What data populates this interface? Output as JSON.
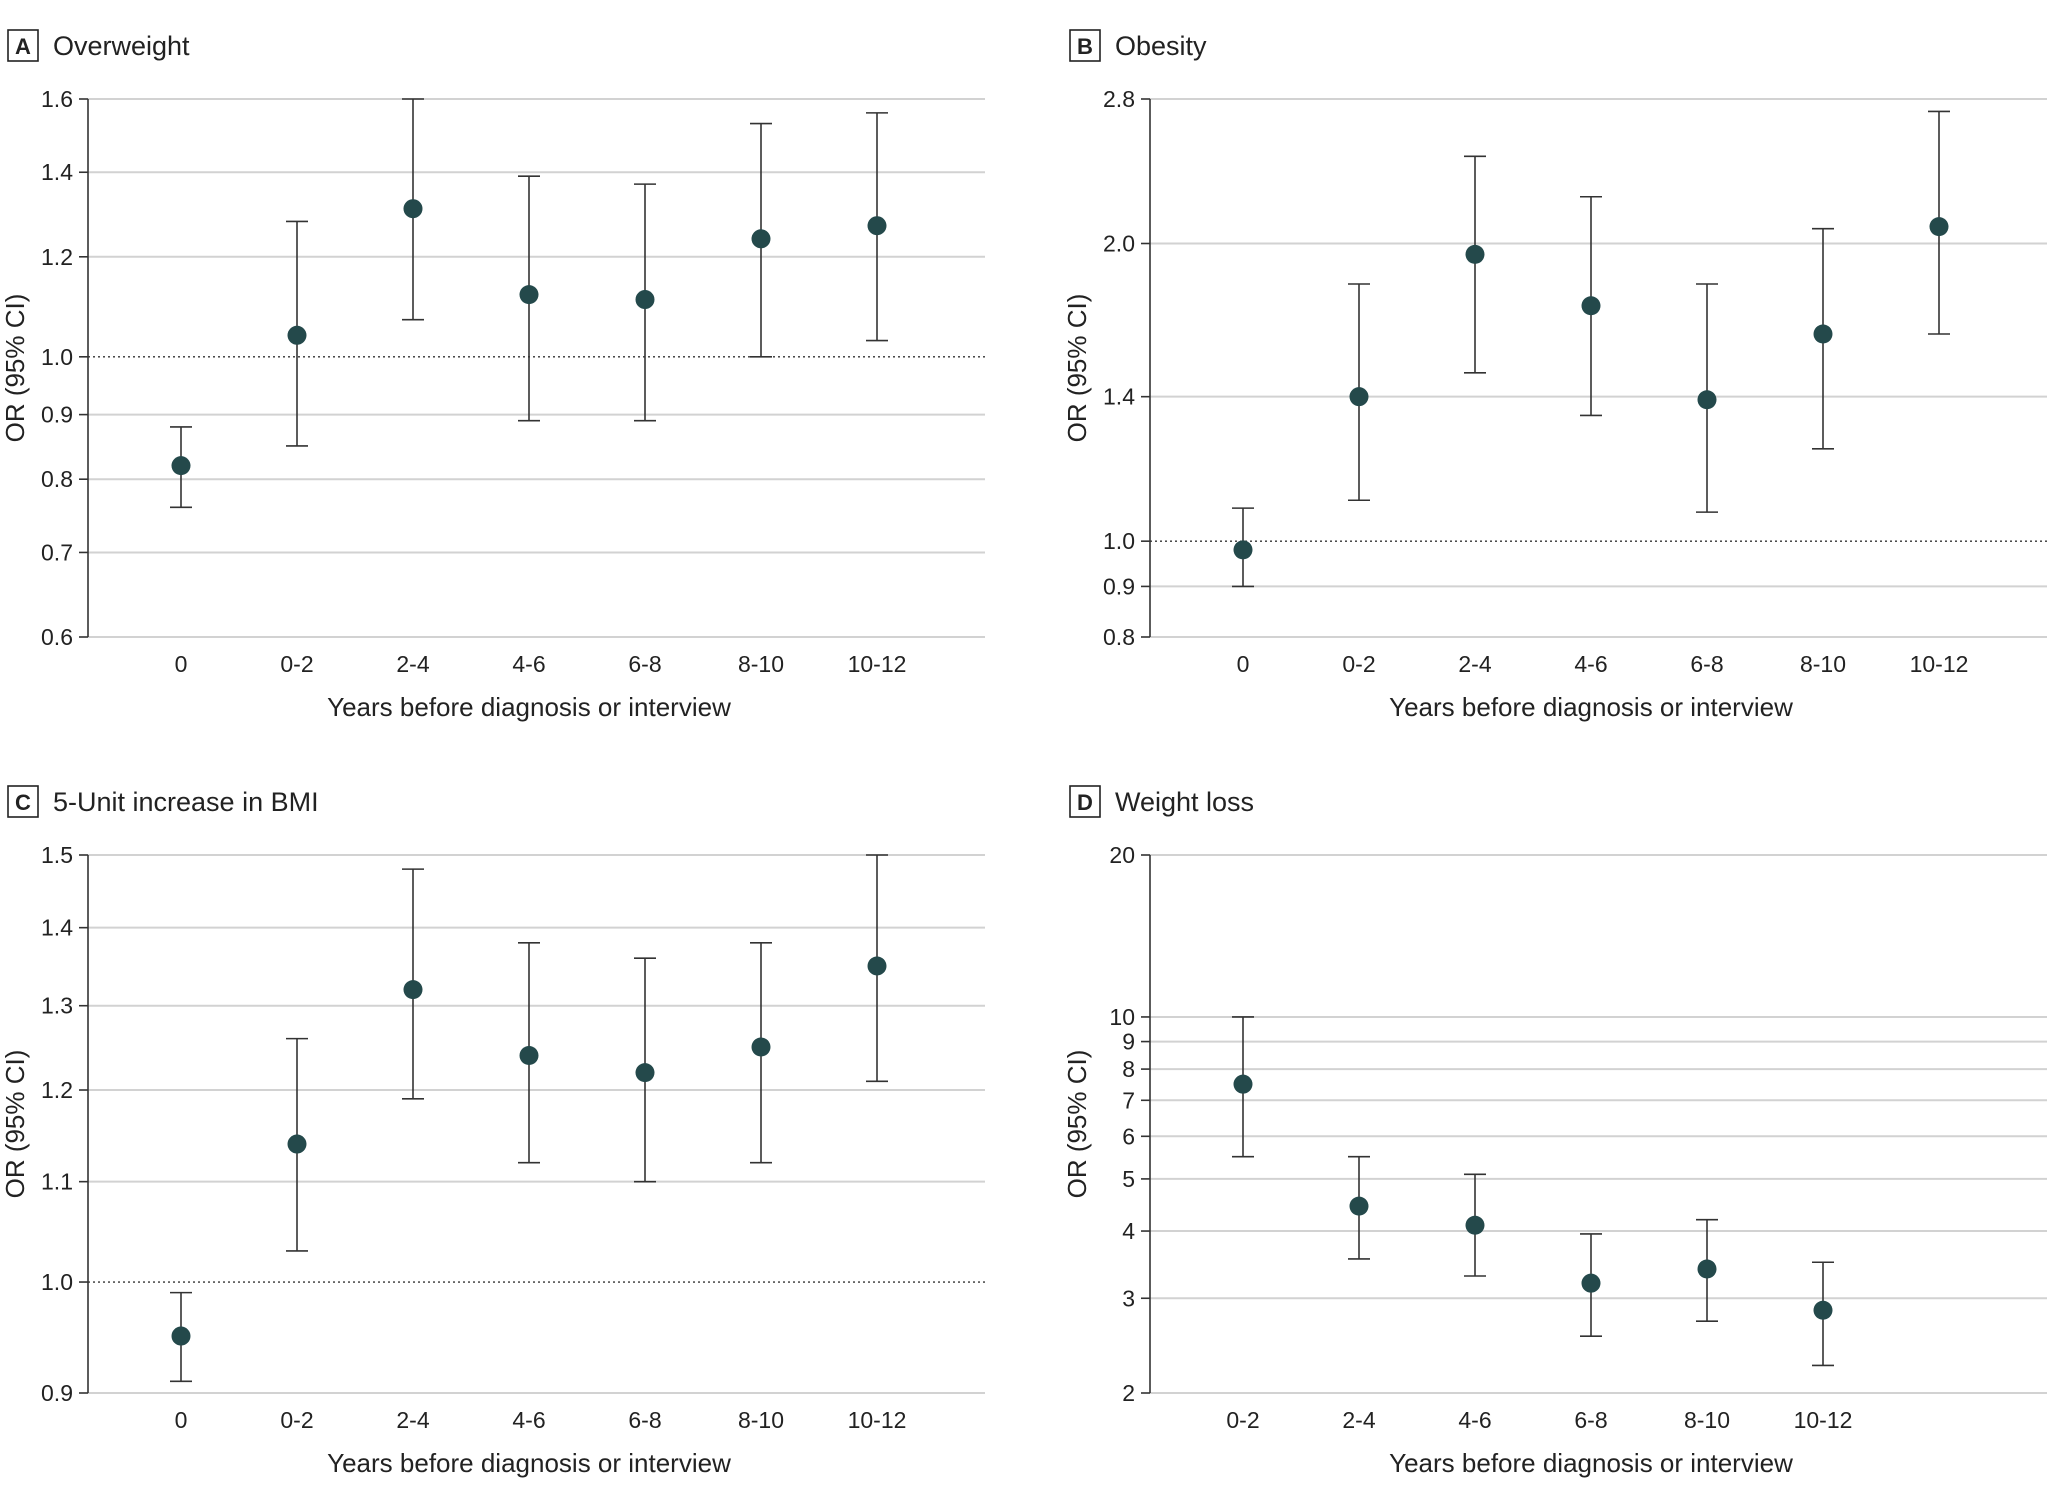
{
  "chart_data": [
    {
      "type": "scatter",
      "panel_label": "A",
      "title": "Overweight",
      "xlabel": "Years before diagnosis or interview",
      "ylabel": "OR (95% CI)",
      "yscale": "log",
      "ylim": [
        0.6,
        1.6
      ],
      "yticks": [
        "0.6",
        "0.7",
        "0.8",
        "0.9",
        "1.0",
        "1.2",
        "1.4",
        "1.6"
      ],
      "reference_line": 1.0,
      "categories": [
        "0",
        "0-2",
        "2-4",
        "4-6",
        "6-8",
        "8-10",
        "10-12"
      ],
      "values": [
        0.82,
        1.04,
        1.31,
        1.12,
        1.11,
        1.24,
        1.27
      ],
      "ci_lower": [
        0.76,
        0.85,
        1.07,
        0.89,
        0.89,
        1.0,
        1.03
      ],
      "ci_upper": [
        0.88,
        1.28,
        1.6,
        1.39,
        1.37,
        1.53,
        1.56
      ]
    },
    {
      "type": "scatter",
      "panel_label": "B",
      "title": "Obesity",
      "xlabel": "Years before diagnosis or interview",
      "ylabel": "OR (95% CI)",
      "yscale": "log",
      "ylim": [
        0.8,
        2.8
      ],
      "yticks": [
        "0.8",
        "0.9",
        "1.0",
        "1.4",
        "2.0",
        "2.8"
      ],
      "reference_line": 1.0,
      "categories": [
        "0",
        "0-2",
        "2-4",
        "4-6",
        "6-8",
        "8-10",
        "10-12"
      ],
      "values": [
        0.98,
        1.4,
        1.95,
        1.73,
        1.39,
        1.62,
        2.08
      ],
      "ci_lower": [
        0.9,
        1.1,
        1.48,
        1.34,
        1.07,
        1.24,
        1.62
      ],
      "ci_upper": [
        1.08,
        1.82,
        2.45,
        2.23,
        1.82,
        2.07,
        2.72
      ]
    },
    {
      "type": "scatter",
      "panel_label": "C",
      "title": "5-Unit increase in BMI",
      "xlabel": "Years before diagnosis or interview",
      "ylabel": "OR (95% CI)",
      "yscale": "log",
      "ylim": [
        0.9,
        1.5
      ],
      "yticks": [
        "0.9",
        "1.0",
        "1.1",
        "1.2",
        "1.3",
        "1.4",
        "1.5"
      ],
      "reference_line": 1.0,
      "categories": [
        "0",
        "0-2",
        "2-4",
        "4-6",
        "6-8",
        "8-10",
        "10-12"
      ],
      "values": [
        0.95,
        1.14,
        1.32,
        1.24,
        1.22,
        1.25,
        1.35
      ],
      "ci_lower": [
        0.91,
        1.03,
        1.19,
        1.12,
        1.1,
        1.12,
        1.21
      ],
      "ci_upper": [
        0.99,
        1.26,
        1.48,
        1.38,
        1.36,
        1.38,
        1.5
      ]
    },
    {
      "type": "scatter",
      "panel_label": "D",
      "title": "Weight loss",
      "xlabel": "Years before diagnosis or interview",
      "ylabel": "OR (95% CI)",
      "yscale": "log",
      "ylim": [
        2,
        20
      ],
      "yticks": [
        "2",
        "3",
        "4",
        "5",
        "6",
        "7",
        "8",
        "9",
        "10",
        "20"
      ],
      "reference_line": null,
      "categories": [
        "0-2",
        "2-4",
        "4-6",
        "6-8",
        "8-10",
        "10-12"
      ],
      "values": [
        7.5,
        4.45,
        4.1,
        3.2,
        3.4,
        2.85
      ],
      "ci_lower": [
        5.5,
        3.55,
        3.3,
        2.55,
        2.72,
        2.25
      ],
      "ci_upper": [
        10.0,
        5.5,
        5.1,
        3.95,
        4.2,
        3.5
      ]
    }
  ]
}
